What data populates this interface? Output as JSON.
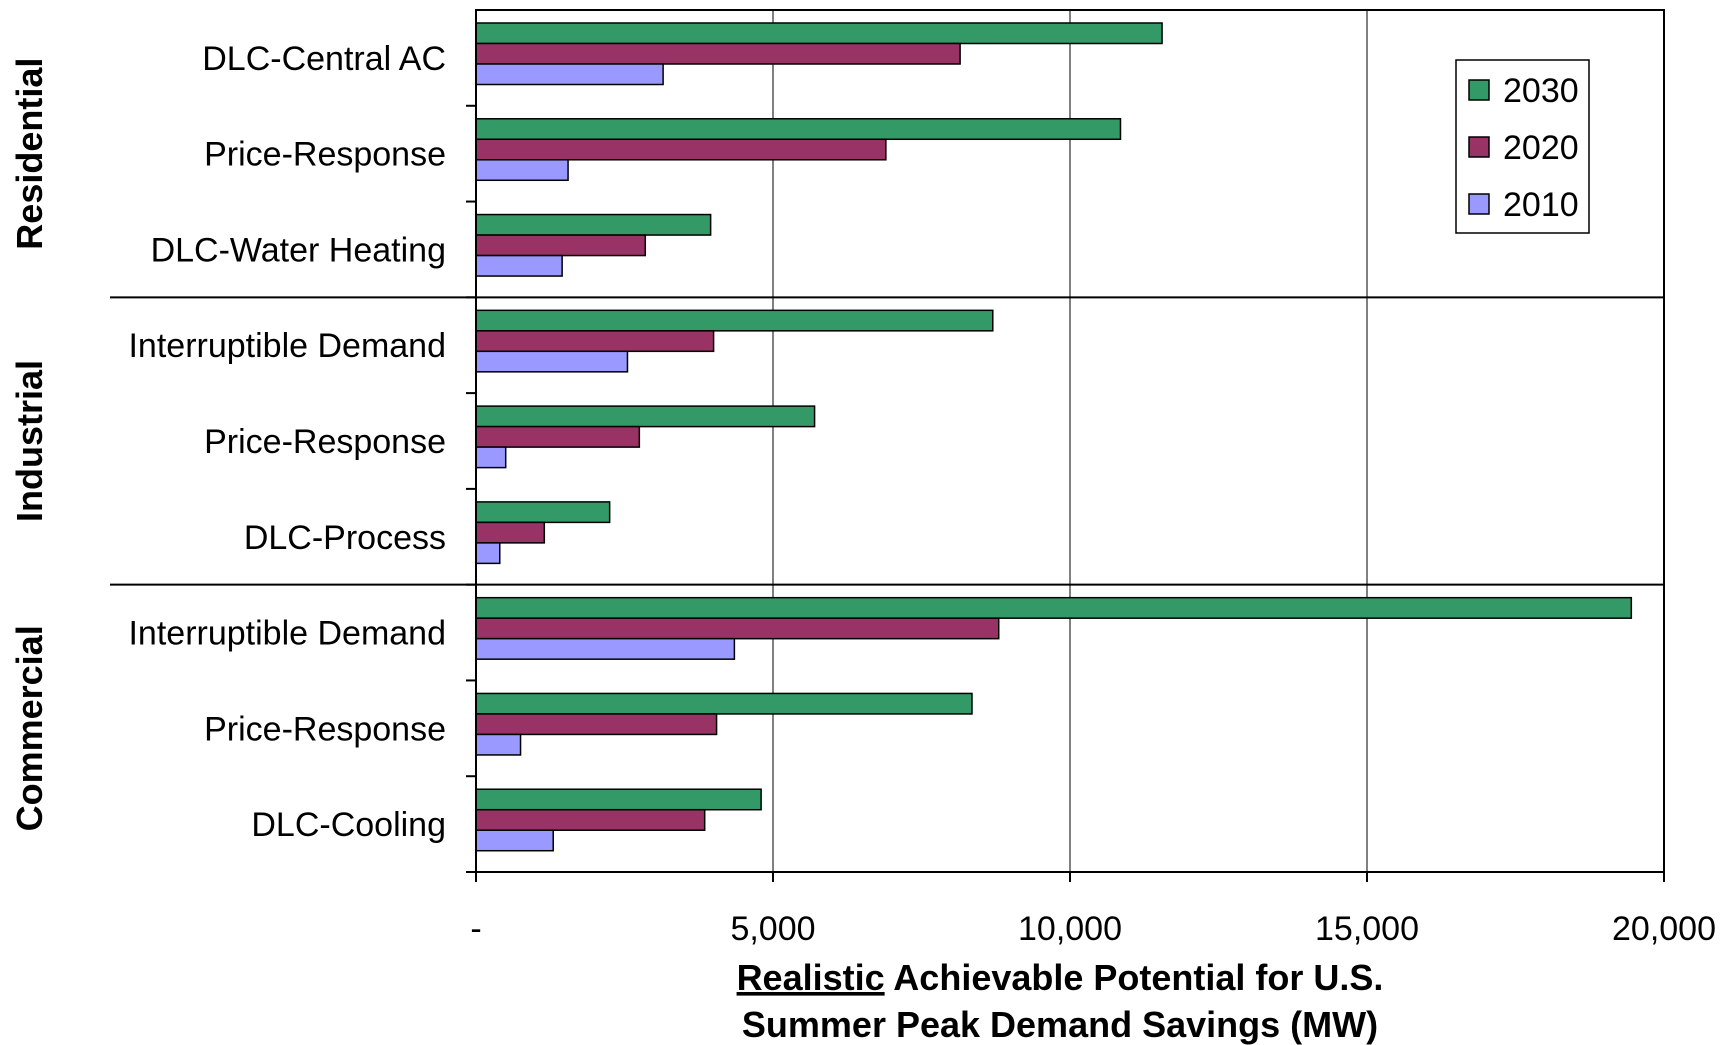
{
  "chart_data": {
    "type": "bar",
    "orientation": "horizontal",
    "xlim": [
      0,
      20000
    ],
    "x_ticks": [
      0,
      5000,
      10000,
      15000,
      20000
    ],
    "x_tick_labels": [
      "-",
      "5,000",
      "10,000",
      "15,000",
      "20,000"
    ],
    "gridlines": "vertical",
    "legend_position": "top-right",
    "xlabel_line1_underlined": "Realistic",
    "xlabel_line1_rest": " Achievable Potential for U.S.",
    "xlabel_line2": "Summer Peak Demand Savings (MW)",
    "groups": [
      {
        "name": "Residential",
        "categories": [
          {
            "label": "DLC-Central AC",
            "values": {
              "2030": 11550,
              "2020": 8150,
              "2010": 3150
            }
          },
          {
            "label": "Price-Response",
            "values": {
              "2030": 10850,
              "2020": 6900,
              "2010": 1550
            }
          },
          {
            "label": "DLC-Water Heating",
            "values": {
              "2030": 3950,
              "2020": 2850,
              "2010": 1450
            }
          }
        ]
      },
      {
        "name": "Industrial",
        "categories": [
          {
            "label": "Interruptible Demand",
            "values": {
              "2030": 8700,
              "2020": 4000,
              "2010": 2550
            }
          },
          {
            "label": "Price-Response",
            "values": {
              "2030": 5700,
              "2020": 2750,
              "2010": 500
            }
          },
          {
            "label": "DLC-Process",
            "values": {
              "2030": 2250,
              "2020": 1150,
              "2010": 400
            }
          }
        ]
      },
      {
        "name": "Commercial",
        "categories": [
          {
            "label": "Interruptible Demand",
            "values": {
              "2030": 19450,
              "2020": 8800,
              "2010": 4350
            }
          },
          {
            "label": "Price-Response",
            "values": {
              "2030": 8350,
              "2020": 4050,
              "2010": 750
            }
          },
          {
            "label": "DLC-Cooling",
            "values": {
              "2030": 4800,
              "2020": 3850,
              "2010": 1300
            }
          }
        ]
      }
    ],
    "series": [
      {
        "name": "2030",
        "color": "#339966"
      },
      {
        "name": "2020",
        "color": "#993366"
      },
      {
        "name": "2010",
        "color": "#9999ff"
      }
    ]
  }
}
